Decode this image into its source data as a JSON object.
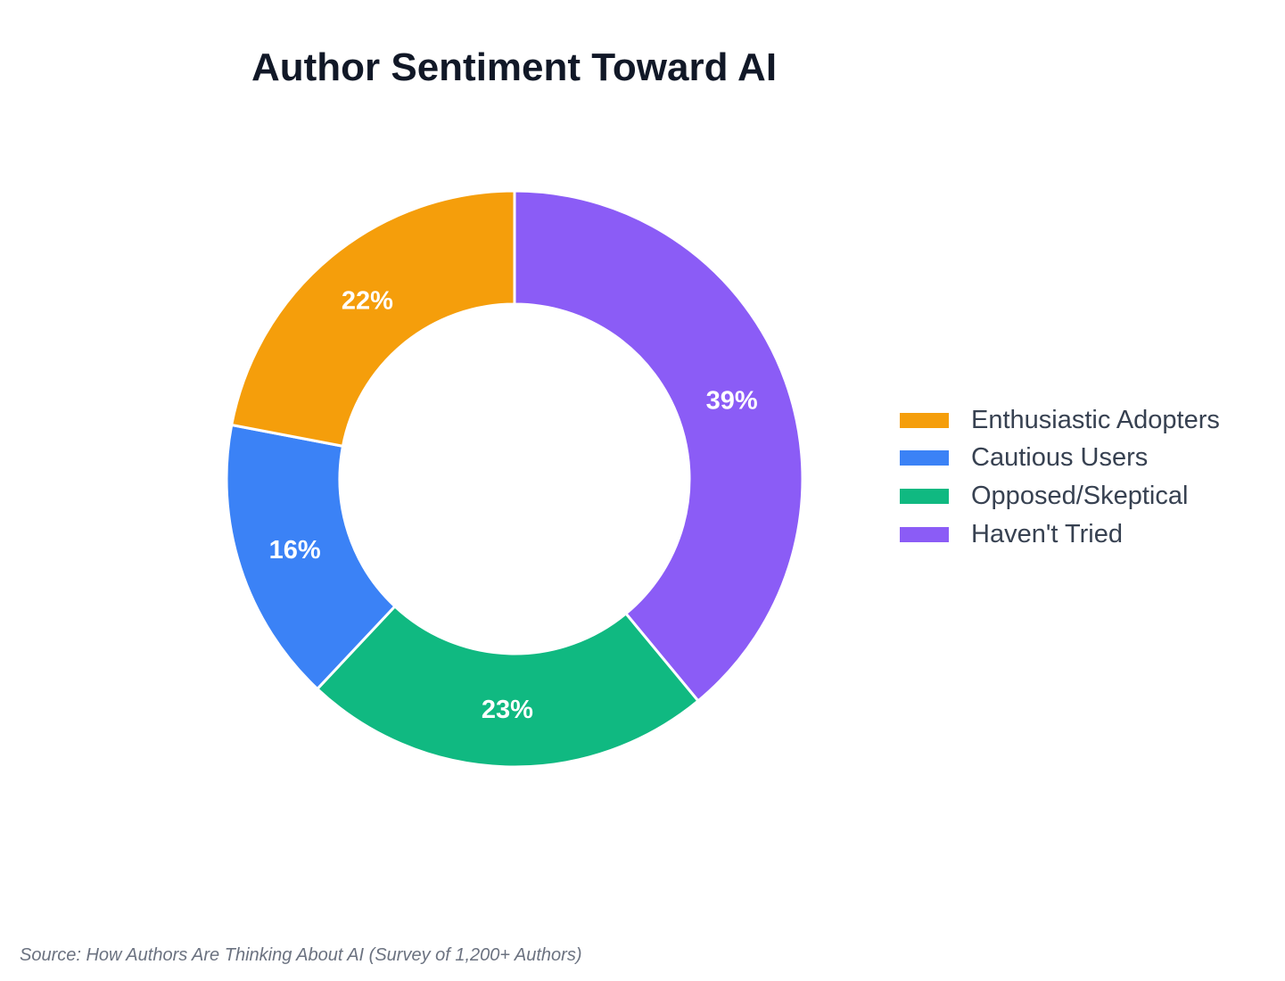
{
  "chart_data": {
    "type": "pie",
    "variant": "donut",
    "title": "Author Sentiment Toward AI",
    "categories": [
      "Haven't Tried",
      "Opposed/Skeptical",
      "Cautious Users",
      "Enthusiastic Adopters"
    ],
    "values": [
      39,
      23,
      16,
      22
    ],
    "value_labels": [
      "39%",
      "23%",
      "16%",
      "22%"
    ],
    "colors": [
      "#8b5cf6",
      "#10b981",
      "#3b82f6",
      "#f59e0b"
    ],
    "legend": {
      "position": "right",
      "entries": [
        {
          "label": "Enthusiastic Adopters",
          "color": "#f59e0b"
        },
        {
          "label": "Cautious Users",
          "color": "#3b82f6"
        },
        {
          "label": "Opposed/Skeptical",
          "color": "#10b981"
        },
        {
          "label": "Haven't Tried",
          "color": "#8b5cf6"
        }
      ]
    },
    "direction": "clockwise",
    "start": "top"
  },
  "source": "Source: How Authors Are Thinking About AI (Survey of 1,200+ Authors)"
}
